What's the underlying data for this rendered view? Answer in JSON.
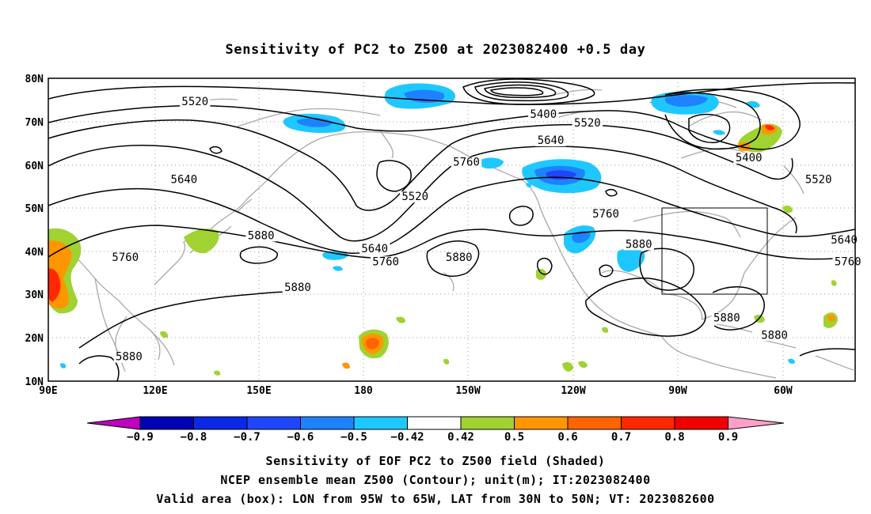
{
  "title": "Sensitivity of PC2 to Z500 at 2023082400 +0.5 day",
  "map": {
    "lat_labels": [
      "80N",
      "70N",
      "60N",
      "50N",
      "40N",
      "30N",
      "20N",
      "10N"
    ],
    "lon_labels": [
      "90E",
      "120E",
      "150E",
      "180",
      "150W",
      "120W",
      "90W",
      "60W"
    ],
    "extent": {
      "lon_min_east": 90,
      "lon_max_east": 310,
      "lat_min": 10,
      "lat_max": 80
    },
    "contour_labels": [
      {
        "text": "5520",
        "lon": 130,
        "lat": 74
      },
      {
        "text": "5400",
        "lon": 225,
        "lat": 71
      },
      {
        "text": "5520",
        "lon": 237,
        "lat": 69
      },
      {
        "text": "5640",
        "lon": 227,
        "lat": 65
      },
      {
        "text": "5760",
        "lon": 204,
        "lat": 60
      },
      {
        "text": "5640",
        "lon": 127,
        "lat": 56
      },
      {
        "text": "5520",
        "lon": 190,
        "lat": 52
      },
      {
        "text": "5400",
        "lon": 281,
        "lat": 61
      },
      {
        "text": "5520",
        "lon": 300,
        "lat": 56
      },
      {
        "text": "5760",
        "lon": 242,
        "lat": 48
      },
      {
        "text": "5640",
        "lon": 307,
        "lat": 42
      },
      {
        "text": "5880",
        "lon": 148,
        "lat": 43
      },
      {
        "text": "5640",
        "lon": 179,
        "lat": 40
      },
      {
        "text": "5760",
        "lon": 182,
        "lat": 37
      },
      {
        "text": "5880",
        "lon": 202,
        "lat": 38
      },
      {
        "text": "5880",
        "lon": 251,
        "lat": 41
      },
      {
        "text": "5760",
        "lon": 111,
        "lat": 38
      },
      {
        "text": "5760",
        "lon": 308,
        "lat": 37
      },
      {
        "text": "5880",
        "lon": 158,
        "lat": 31
      },
      {
        "text": "5880",
        "lon": 112,
        "lat": 15
      },
      {
        "text": "5880",
        "lon": 275,
        "lat": 24
      },
      {
        "text": "5880",
        "lon": 288,
        "lat": 20
      }
    ],
    "valid_box": {
      "lon_west": 95,
      "lon_east": 65,
      "lat_south": 30,
      "lat_north": 50
    }
  },
  "colorbar": {
    "tick_labels": [
      "−0.9",
      "−0.8",
      "−0.7",
      "−0.6",
      "−0.5",
      "−0.42",
      "0.42",
      "0.5",
      "0.6",
      "0.7",
      "0.8",
      "0.9"
    ],
    "colors": [
      "#c000c0",
      "#0000b4",
      "#0a28e6",
      "#1e46ff",
      "#1e82ff",
      "#1ec8ff",
      "#ffffff",
      "#a0d232",
      "#ff9600",
      "#ff6400",
      "#ff2800",
      "#f00000",
      "#ffa0c8"
    ]
  },
  "shading_colors": {
    "neg_light": "#1ec8ff",
    "neg_mid": "#1e82ff",
    "neg_dark": "#1e46ff",
    "pos_green": "#a0d232",
    "pos_orange": "#ff9600",
    "pos_red": "#ff2800"
  },
  "captions": [
    "Sensitivity of EOF PC2 to Z500 field (Shaded)",
    "NCEP ensemble mean Z500 (Contour); unit(m); IT:2023082400",
    "Valid area (box): LON from 95W to 65W, LAT from 30N to 50N; VT: 2023082600"
  ]
}
